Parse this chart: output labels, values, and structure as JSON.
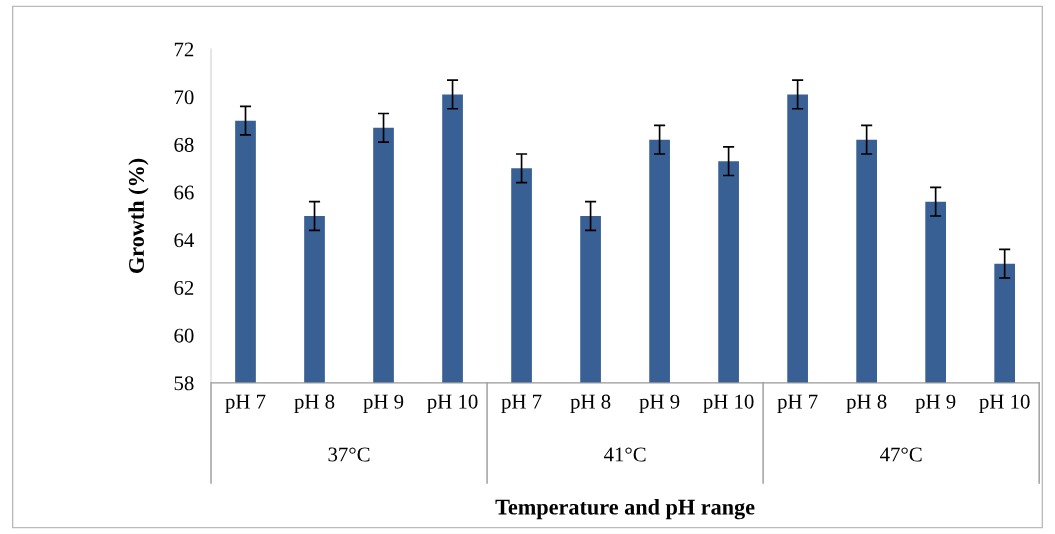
{
  "chart_data": {
    "type": "bar",
    "xlabel": "Temperature and pH range",
    "ylabel": "Growth (%)",
    "categories": [
      "pH 7",
      "pH 8",
      "pH 9",
      "pH 10",
      "pH 7",
      "pH 8",
      "pH 9",
      "pH 10",
      "pH 7",
      "pH 8",
      "pH 9",
      "pH 10"
    ],
    "values": [
      69.0,
      65.0,
      68.7,
      70.1,
      67.0,
      65.0,
      68.2,
      67.3,
      70.1,
      68.2,
      65.6,
      63.0
    ],
    "errors": [
      0.6,
      0.6,
      0.6,
      0.6,
      0.6,
      0.6,
      0.6,
      0.6,
      0.6,
      0.6,
      0.6,
      0.6
    ],
    "color": "#386095",
    "annotations": [
      "37°C",
      "41°C",
      "47°C"
    ],
    "ylim": [
      58,
      72
    ],
    "yticks": [
      58,
      60,
      62,
      64,
      66,
      68,
      70,
      72
    ],
    "grid": false,
    "legend": false
  }
}
